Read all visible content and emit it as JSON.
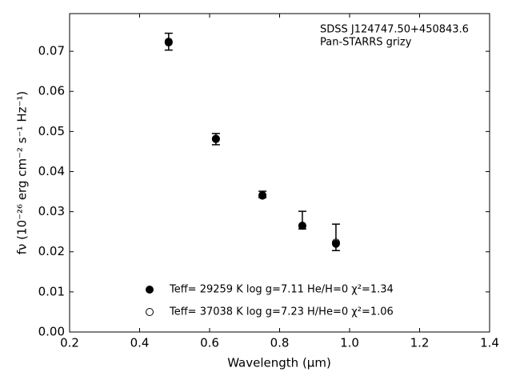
{
  "chart_data": {
    "type": "scatter",
    "x_label": "Wavelength (μm)",
    "y_label": "fν (10⁻²⁶ erg cm⁻² s⁻¹ Hz⁻¹)",
    "annotations": [
      "SDSS J124747.50+450843.6",
      "Pan-STARRS grizy"
    ],
    "x": [
      0.483,
      0.618,
      0.751,
      0.865,
      0.961
    ],
    "observed": {
      "color": "#000000",
      "values": [
        0.0724,
        0.0481,
        0.0343,
        0.0279,
        0.0236
      ],
      "errors": [
        0.0021,
        0.0014,
        0.0008,
        0.0022,
        0.0033
      ]
    },
    "series": [
      {
        "name": "Teff= 29259 K  log g=7.11  He/H=0  χ²=1.34",
        "color": "#000000",
        "marker": "filled",
        "values": [
          0.0722,
          0.0481,
          0.0341,
          0.0265,
          0.022
        ]
      },
      {
        "name": "Teff= 37038 K  log g=7.23  H/He=0  χ²=1.06",
        "color": "#000000",
        "marker": "open",
        "values": [
          0.0724,
          0.0482,
          0.034,
          0.0265,
          0.0223
        ]
      }
    ],
    "xlim": [
      0.2,
      1.4
    ],
    "ylim": [
      0,
      0.0794
    ],
    "xticks": [
      0.2,
      0.4,
      0.6,
      0.8,
      {
        "value": 1,
        "label": "1.0"
      },
      1.2,
      1.4
    ],
    "yticks": [
      {
        "value": 0,
        "label": "0.00"
      },
      {
        "value": 0.01,
        "label": "0.01"
      },
      {
        "value": 0.02,
        "label": "0.02"
      },
      {
        "value": 0.03,
        "label": "0.03"
      },
      {
        "value": 0.04,
        "label": "0.04"
      },
      {
        "value": 0.05,
        "label": "0.05"
      },
      {
        "value": 0.06,
        "label": "0.06"
      },
      {
        "value": 0.07,
        "label": "0.07"
      }
    ]
  }
}
